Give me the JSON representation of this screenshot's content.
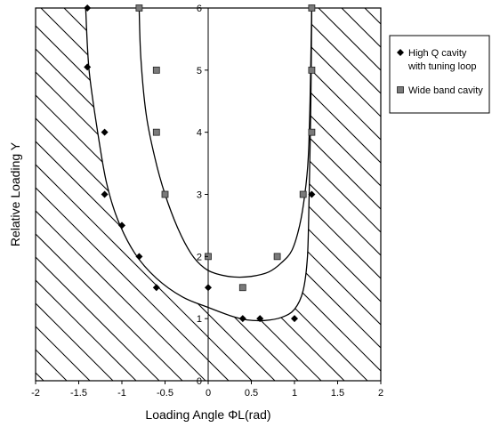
{
  "chart_data": {
    "type": "scatter",
    "xlabel": "Loading Angle ΦL(rad)",
    "ylabel": "Relative Loading Y",
    "xlim": [
      -2,
      2
    ],
    "ylim": [
      0,
      6
    ],
    "x_ticks": [
      -2,
      -1.5,
      -1,
      -0.5,
      0,
      0.5,
      1,
      1.5,
      2
    ],
    "y_ticks": [
      0,
      1,
      2,
      3,
      4,
      5,
      6
    ],
    "grid": "vertical line at x=0",
    "hatched_regions": "outside the outer boundary curve (left side and right side)",
    "series": [
      {
        "name": "High Q cavity with tuning loop",
        "marker": "diamond",
        "color": "#000000",
        "points": [
          [
            -1.4,
            6.0
          ],
          [
            -1.4,
            5.05
          ],
          [
            -1.2,
            4.0
          ],
          [
            -1.2,
            3.0
          ],
          [
            -1.0,
            2.5
          ],
          [
            -0.8,
            2.0
          ],
          [
            -0.6,
            1.5
          ],
          [
            0.0,
            1.5
          ],
          [
            0.4,
            1.0
          ],
          [
            0.6,
            1.0
          ],
          [
            1.0,
            1.0
          ],
          [
            1.2,
            3.0
          ],
          [
            1.2,
            6.0
          ]
        ]
      },
      {
        "name": "Wide band cavity",
        "marker": "square",
        "color": "#7a7a7a",
        "points": [
          [
            -0.8,
            6.0
          ],
          [
            -0.6,
            5.0
          ],
          [
            -0.6,
            4.0
          ],
          [
            -0.5,
            3.0
          ],
          [
            0.0,
            2.0
          ],
          [
            0.4,
            1.5
          ],
          [
            0.8,
            2.0
          ],
          [
            1.1,
            3.0
          ],
          [
            1.2,
            4.0
          ],
          [
            1.2,
            5.0
          ],
          [
            1.2,
            6.0
          ]
        ]
      }
    ],
    "curves": [
      {
        "role": "outer boundary",
        "points": [
          [
            -1.42,
            6.0
          ],
          [
            -1.38,
            5.0
          ],
          [
            -1.28,
            4.0
          ],
          [
            -1.18,
            3.2
          ],
          [
            -1.05,
            2.6
          ],
          [
            -0.85,
            2.05
          ],
          [
            -0.6,
            1.65
          ],
          [
            -0.3,
            1.35
          ],
          [
            0.0,
            1.18
          ],
          [
            0.25,
            1.05
          ],
          [
            0.45,
            0.98
          ],
          [
            0.65,
            0.97
          ],
          [
            0.85,
            1.02
          ],
          [
            1.0,
            1.15
          ],
          [
            1.1,
            1.45
          ],
          [
            1.15,
            2.0
          ],
          [
            1.17,
            3.0
          ],
          [
            1.19,
            4.5
          ],
          [
            1.2,
            6.0
          ]
        ]
      },
      {
        "role": "inner boundary",
        "points": [
          [
            -0.8,
            6.0
          ],
          [
            -0.78,
            5.2
          ],
          [
            -0.72,
            4.3
          ],
          [
            -0.62,
            3.6
          ],
          [
            -0.5,
            3.0
          ],
          [
            -0.35,
            2.45
          ],
          [
            -0.2,
            2.05
          ],
          [
            -0.05,
            1.82
          ],
          [
            0.1,
            1.72
          ],
          [
            0.3,
            1.67
          ],
          [
            0.5,
            1.68
          ],
          [
            0.7,
            1.75
          ],
          [
            0.85,
            1.9
          ],
          [
            0.97,
            2.1
          ],
          [
            1.06,
            2.5
          ],
          [
            1.12,
            3.0
          ],
          [
            1.16,
            3.6
          ],
          [
            1.18,
            4.5
          ],
          [
            1.2,
            6.0
          ]
        ]
      }
    ],
    "legend": {
      "placement": "top-right",
      "entries": [
        {
          "marker": "diamond",
          "label_lines": [
            "High Q cavity",
            "with tuning loop"
          ]
        },
        {
          "marker": "square",
          "label_lines": [
            "Wide band cavity"
          ]
        }
      ]
    }
  }
}
